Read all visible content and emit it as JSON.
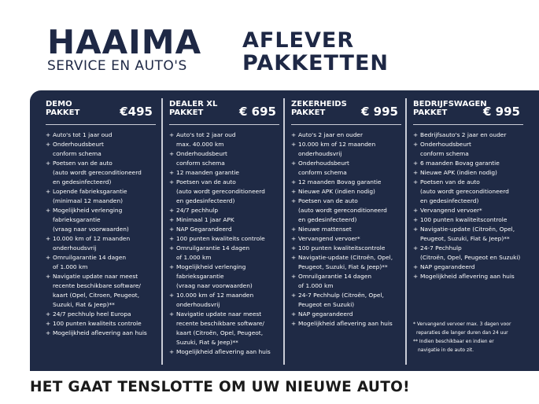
{
  "brand": {
    "name": "HAAIMA",
    "tagline": "SERVICE EN AUTO'S"
  },
  "title": {
    "line1": "AFLEVER",
    "line2": "PAKKETTEN"
  },
  "packages": [
    {
      "name1": "DEMO",
      "name2": "PAKKET",
      "price": "€495",
      "items": [
        [
          "Auto's tot 1 jaar oud"
        ],
        [
          "Onderhoudsbeurt",
          "conform schema"
        ],
        [
          "Poetsen van de auto",
          "(auto wordt gereconditioneerd",
          "en gedesinfecteerd)"
        ],
        [
          "Lopende fabrieksgarantie",
          "(minimaal 12 maanden)"
        ],
        [
          "Mogelijkheid verlenging",
          "fabrieksgarantie",
          "(vraag naar voorwaarden)"
        ],
        [
          "10.000 km of 12 maanden",
          "onderhoudsvrij"
        ],
        [
          "Omruilgarantie 14 dagen",
          "of 1.000 km"
        ],
        [
          "Navigatie update naar meest",
          "recente beschikbare software/",
          "kaart (Opel, Citroen,  Peugeot,",
          "Suzuki, Fiat & Jeep)**"
        ],
        [
          "24/7 pechhulp heel Europa"
        ],
        [
          "100 punten kwaliteits controle"
        ],
        [
          "Mogelijkheid aflevering aan huis"
        ]
      ]
    },
    {
      "name1": "DEALER XL",
      "name2": "PAKKET",
      "price": "€ 695",
      "items": [
        [
          "Auto's tot 2 jaar oud",
          "max. 40.000 km"
        ],
        [
          "Onderhoudsbeurt",
          "conform schema"
        ],
        [
          "12 maanden garantie"
        ],
        [
          "Poetsen van de auto",
          "(auto wordt gereconditioneerd",
          "en gedesinfecteerd)"
        ],
        [
          "24/7 pechhulp"
        ],
        [
          "Minimaal 1 jaar APK"
        ],
        [
          "NAP Gegarandeerd"
        ],
        [
          "100 punten kwaliteits controle"
        ],
        [
          "Omruilgarantie 14 dagen",
          "of 1.000 km"
        ],
        [
          "Mogelijkheid verlenging",
          "fabrieksgarantie",
          "(vraag naar voorwaarden)"
        ],
        [
          "10.000 km of 12 maanden",
          "onderhoudsvrij"
        ],
        [
          "Navigatie update naar meest",
          "recente beschikbare software/",
          "kaart (Citroën, Opel, Peugeot,",
          "Suzuki, Fiat & Jeep)**"
        ],
        [
          "Mogelijkheid aflevering aan huis"
        ]
      ]
    },
    {
      "name1": "ZEKERHEIDS",
      "name2": "PAKKET",
      "price": "€ 995",
      "items": [
        [
          "Auto's 2 jaar en ouder"
        ],
        [
          "10.000 km of 12 maanden",
          "onderhoudsvrij"
        ],
        [
          "Onderhoudsbeurt",
          "conform schema"
        ],
        [
          "12 maanden Bovag garantie"
        ],
        [
          "Nieuwe APK (indien nodig)"
        ],
        [
          "Poetsen van de auto",
          "(auto wordt gereconditioneerd",
          "en gedesinfecteerd)"
        ],
        [
          "Nieuwe mattenset"
        ],
        [
          "Vervangend vervoer*"
        ],
        [
          "100 punten kwaliteitscontrole"
        ],
        [
          "Navigatie-update (Citroën, Opel,",
          "Peugeot, Suzuki, Fiat & Jeep)**"
        ],
        [
          "Omruilgarantie 14 dagen",
          "of 1.000 km"
        ],
        [
          "24-7 Pechhulp (Citroën, Opel,",
          "Peugeot en Suzuki)"
        ],
        [
          "NAP gegarandeerd"
        ],
        [
          "Mogelijkheid aflevering aan huis"
        ]
      ]
    },
    {
      "name1": "BEDRIJFSWAGEN",
      "name2": "PAKKET",
      "price": "€ 995",
      "items": [
        [
          "Bedrijfsauto's 2 jaar en ouder"
        ],
        [
          "Onderhoudsbeurt",
          "conform schema"
        ],
        [
          "6 maanden Bovag garantie"
        ],
        [
          "Nieuwe APK (indien nodig)"
        ],
        [
          "Poetsen van de auto",
          "(auto wordt gereconditioneerd",
          "en gedesinfecteerd)"
        ],
        [
          "Vervangend vervoer*"
        ],
        [
          "100 punten kwaliteitscontrole"
        ],
        [
          "Navigatie-update (Citroën, Opel,",
          "Peugeot, Suzuki, Fiat & Jeep)**"
        ],
        [
          "24-7 Pechhulp",
          "(Citroën, Opel, Peugeot en Suzuki)"
        ],
        [
          "NAP gegarandeerd"
        ],
        [
          "Mogelijkheid aflevering aan huis"
        ]
      ]
    }
  ],
  "notes": {
    "n1a": "* Vervangend vervoer max. 3 dagen voor",
    "n1b": "  reparaties die langer duren dan 24 uur",
    "n2a": "** Indien beschikbaar en indien er",
    "n2b": "   navigatie in de auto zit."
  },
  "footer": "HET GAAT TENSLOTTE OM UW NIEUWE AUTO!",
  "colors": {
    "navy": "#1f2a45",
    "text": "#ffffff"
  }
}
